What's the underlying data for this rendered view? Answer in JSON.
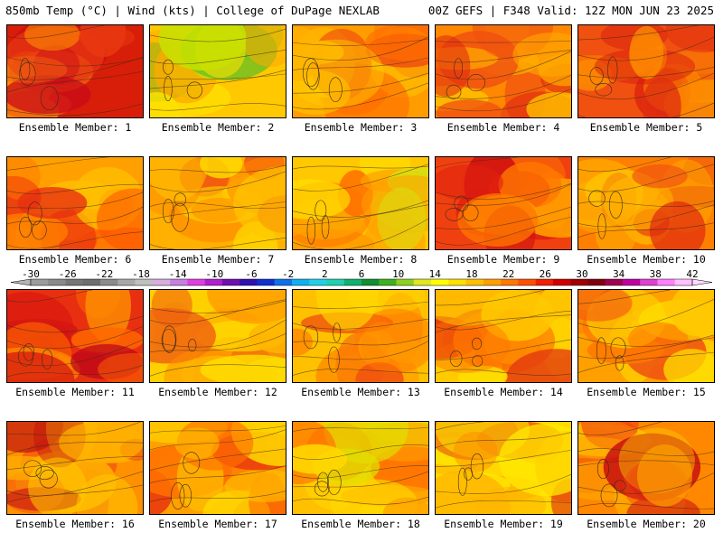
{
  "header": {
    "left_title": "850mb Temp (°C) | Wind (kts) | College of DuPage NEXLAB",
    "right_title": "00Z GEFS | F348 Valid: 12Z MON JUN 23 2025"
  },
  "colorbar": {
    "tick_labels": [
      "-30",
      "-26",
      "-22",
      "-18",
      "-14",
      "-10",
      "-6",
      "-2",
      "2",
      "6",
      "10",
      "14",
      "18",
      "22",
      "26",
      "30",
      "34",
      "38",
      "42"
    ],
    "colors": [
      "#9c9c9c",
      "#8a8a8a",
      "#767676",
      "#6e6e6e",
      "#8c8c8c",
      "#a8a8a8",
      "#c0c0c0",
      "#d6aee0",
      "#c880e0",
      "#e040e0",
      "#b020d0",
      "#7010b0",
      "#3010b0",
      "#1030d0",
      "#1070e8",
      "#10b0f0",
      "#20d0e8",
      "#20d0b0",
      "#10b070",
      "#109030",
      "#40b020",
      "#90d020",
      "#e0e820",
      "#ffff00",
      "#ffe000",
      "#ffc000",
      "#ffa000",
      "#ff7800",
      "#ff5000",
      "#f02000",
      "#d00000",
      "#a00000",
      "#800010",
      "#a00050",
      "#c000a0",
      "#e040d0",
      "#ff80ff",
      "#ffc0ff"
    ]
  },
  "panels": [
    {
      "label": "Ensemble Member: 1",
      "palette": [
        "#d81e08",
        "#f06010",
        "#e83810",
        "#ff9800",
        "#c80a18"
      ]
    },
    {
      "label": "Ensemble Member: 2",
      "palette": [
        "#ffc800",
        "#ffe000",
        "#c8e000",
        "#70c020",
        "#ffa800"
      ]
    },
    {
      "label": "Ensemble Member: 3",
      "palette": [
        "#ff9c00",
        "#ff7000",
        "#ffb400",
        "#ee4010",
        "#ffc800"
      ]
    },
    {
      "label": "Ensemble Member: 4",
      "palette": [
        "#ff8800",
        "#f05010",
        "#ffa800",
        "#e02810",
        "#ffc000"
      ]
    },
    {
      "label": "Ensemble Member: 5",
      "palette": [
        "#f05010",
        "#e03010",
        "#ff8800",
        "#d81810",
        "#ffa000"
      ]
    },
    {
      "label": "Ensemble Member: 6",
      "palette": [
        "#ffa000",
        "#ff7800",
        "#e83010",
        "#ffc000",
        "#ff5000"
      ]
    },
    {
      "label": "Ensemble Member: 7",
      "palette": [
        "#ffb000",
        "#ff8800",
        "#ffc800",
        "#f05010",
        "#ffd800"
      ]
    },
    {
      "label": "Ensemble Member: 8",
      "palette": [
        "#ffc800",
        "#ffa000",
        "#d8e010",
        "#ff7000",
        "#ffe000"
      ]
    },
    {
      "label": "Ensemble Member: 9",
      "palette": [
        "#f04010",
        "#e02010",
        "#ff7800",
        "#ff9c00",
        "#d01010"
      ]
    },
    {
      "label": "Ensemble Member: 10",
      "palette": [
        "#ff8000",
        "#f05010",
        "#ffa800",
        "#e02810",
        "#ffc800"
      ]
    },
    {
      "label": "Ensemble Member: 11",
      "palette": [
        "#e83010",
        "#d81810",
        "#ff6800",
        "#ff9800",
        "#c00a18"
      ]
    },
    {
      "label": "Ensemble Member: 12",
      "palette": [
        "#ffd000",
        "#ffb400",
        "#ffe000",
        "#ff9000",
        "#f06010"
      ]
    },
    {
      "label": "Ensemble Member: 13",
      "palette": [
        "#ffc000",
        "#ff9800",
        "#ffd800",
        "#f05010",
        "#ff7800"
      ]
    },
    {
      "label": "Ensemble Member: 14",
      "palette": [
        "#ffa800",
        "#ff7800",
        "#ffc800",
        "#e03010",
        "#ffe000"
      ]
    },
    {
      "label": "Ensemble Member: 15",
      "palette": [
        "#ffa000",
        "#ff7800",
        "#ffc800",
        "#f05010",
        "#ffe000"
      ]
    },
    {
      "label": "Ensemble Member: 16",
      "palette": [
        "#ff9000",
        "#f05010",
        "#ffb000",
        "#c01010",
        "#ffc800"
      ]
    },
    {
      "label": "Ensemble Member: 17",
      "palette": [
        "#ffa000",
        "#ff7000",
        "#ffc000",
        "#e83010",
        "#ffd800"
      ]
    },
    {
      "label": "Ensemble Member: 18",
      "palette": [
        "#ffc000",
        "#ffa000",
        "#ffd800",
        "#ff7000",
        "#e0e000"
      ]
    },
    {
      "label": "Ensemble Member: 19",
      "palette": [
        "#ffd800",
        "#ffb400",
        "#ffe800",
        "#ff8800",
        "#e03010"
      ]
    },
    {
      "label": "Ensemble Member: 20",
      "palette": [
        "#ff8800",
        "#f04010",
        "#ffa800",
        "#c81010",
        "#ffc800"
      ]
    }
  ]
}
